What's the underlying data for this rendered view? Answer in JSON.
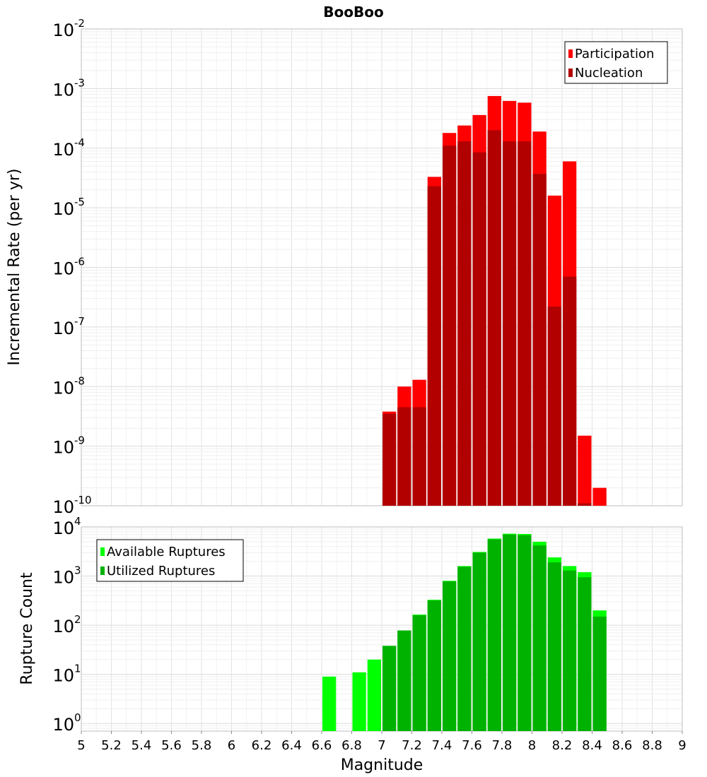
{
  "chart_data": [
    {
      "type": "bar",
      "title": "BooBoo",
      "ylabel": "Incremental Rate (per yr)",
      "xlabel": "",
      "y_scale": "log",
      "ylim": [
        1e-10,
        0.01
      ],
      "xlim": [
        5,
        9
      ],
      "y_tick_exponents": [
        "-2",
        "-3",
        "-4",
        "-5",
        "-6",
        "-7",
        "-8",
        "-9",
        "-10"
      ],
      "y_tick_values": [
        0.01,
        0.001,
        0.0001,
        1e-05,
        1e-06,
        1e-07,
        1e-08,
        1e-09,
        1e-10
      ],
      "grid": true,
      "legend": "top-right",
      "bar_width": 0.1,
      "x": [
        7.05,
        7.15,
        7.25,
        7.35,
        7.45,
        7.55,
        7.65,
        7.75,
        7.85,
        7.95,
        8.05,
        8.15,
        8.25,
        8.35,
        8.45
      ],
      "series": [
        {
          "name": "Participation",
          "color": "#ff0000",
          "values": [
            3.8e-09,
            1e-08,
            1.3e-08,
            3.3e-05,
            0.00018,
            0.00024,
            0.00036,
            0.00075,
            0.00062,
            0.00058,
            0.00019,
            1.6e-05,
            6e-05,
            1.5e-09,
            2e-10
          ]
        },
        {
          "name": "Nucleation",
          "color": "#b20000",
          "values": [
            3.5e-09,
            4.5e-09,
            4.5e-09,
            2.3e-05,
            0.00011,
            0.00013,
            8.5e-05,
            0.0002,
            0.00013,
            0.00013,
            3.7e-05,
            2.2e-07,
            7e-07,
            1.1e-10,
            null
          ]
        }
      ]
    },
    {
      "type": "bar",
      "title": "",
      "ylabel": "Rupture Count",
      "xlabel": "Magnitude",
      "y_scale": "log",
      "ylim": [
        0.7,
        10000
      ],
      "xlim": [
        5,
        9
      ],
      "y_tick_exponents": [
        "4",
        "3",
        "2",
        "1",
        "0"
      ],
      "y_tick_values": [
        10000,
        1000,
        100,
        10,
        1
      ],
      "x_ticks": [
        "5",
        "5.2",
        "5.4",
        "5.6",
        "5.8",
        "6",
        "6.2",
        "6.4",
        "6.6",
        "6.8",
        "7",
        "7.2",
        "7.4",
        "7.6",
        "7.8",
        "8",
        "8.2",
        "8.4",
        "8.6",
        "8.8",
        "9"
      ],
      "grid": true,
      "legend": "top-left",
      "bar_width": 0.1,
      "x": [
        6.65,
        6.85,
        6.95,
        7.05,
        7.15,
        7.25,
        7.35,
        7.45,
        7.55,
        7.65,
        7.75,
        7.85,
        7.95,
        8.05,
        8.15,
        8.25,
        8.35,
        8.45
      ],
      "series": [
        {
          "name": "Available Ruptures",
          "color": "#00ff00",
          "values": [
            9,
            11,
            20,
            38,
            78,
            165,
            330,
            800,
            1600,
            3100,
            5800,
            7300,
            7200,
            5000,
            2400,
            1600,
            1200,
            200
          ]
        },
        {
          "name": "Utilized Ruptures",
          "color": "#00b200",
          "values": [
            null,
            null,
            null,
            38,
            78,
            160,
            320,
            780,
            1550,
            3000,
            5600,
            7000,
            6800,
            4200,
            1900,
            1300,
            950,
            150
          ]
        }
      ]
    }
  ]
}
